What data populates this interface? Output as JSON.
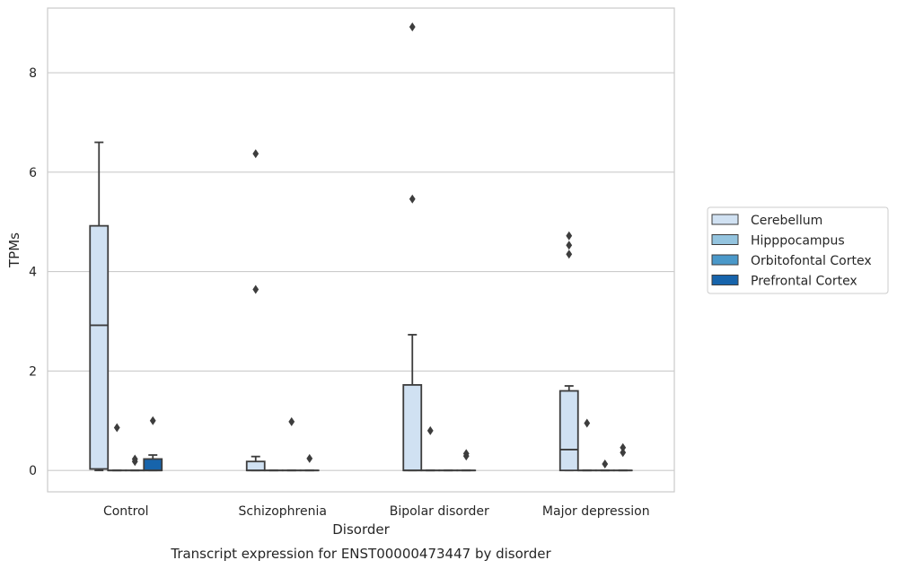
{
  "chart_data": {
    "type": "box",
    "title": "",
    "caption": "Transcript expression for ENST00000473447 by disorder",
    "xlabel": "Disorder",
    "ylabel": "TPMs",
    "ylim": [
      -0.43,
      9.3
    ],
    "yticks": [
      0,
      2,
      4,
      6,
      8
    ],
    "grid": true,
    "categories": [
      "Control",
      "Schizophrenia",
      "Bipolar disorder",
      "Major depression"
    ],
    "legend": {
      "placement": "right",
      "entries": [
        {
          "name": "Cerebellum",
          "color": "#d0e1f2"
        },
        {
          "name": "Hipppocampus",
          "color": "#94c4df"
        },
        {
          "name": "Orbitofontal Cortex",
          "color": "#4a98c9"
        },
        {
          "name": "Prefrontal Cortex",
          "color": "#1764ab"
        }
      ]
    },
    "series": [
      {
        "name": "Cerebellum",
        "boxes": [
          {
            "q1": 0.03,
            "median": 2.92,
            "q3": 4.92,
            "whisker_low": 0.0,
            "whisker_high": 6.6,
            "outliers": []
          },
          {
            "q1": 0.0,
            "median": 0.0,
            "q3": 0.18,
            "whisker_low": 0.0,
            "whisker_high": 0.28,
            "outliers": [
              3.64,
              6.37
            ]
          },
          {
            "q1": 0.0,
            "median": 0.0,
            "q3": 1.72,
            "whisker_low": 0.0,
            "whisker_high": 2.73,
            "outliers": [
              5.46,
              8.92
            ]
          },
          {
            "q1": 0.0,
            "median": 0.42,
            "q3": 1.6,
            "whisker_low": 0.0,
            "whisker_high": 1.7,
            "outliers": [
              4.35,
              4.53,
              4.72
            ]
          }
        ]
      },
      {
        "name": "Hipppocampus",
        "boxes": [
          {
            "q1": 0.0,
            "median": 0.0,
            "q3": 0.0,
            "whisker_low": 0.0,
            "whisker_high": 0.0,
            "outliers": [
              0.86
            ]
          },
          {
            "q1": 0.0,
            "median": 0.0,
            "q3": 0.0,
            "whisker_low": 0.0,
            "whisker_high": 0.0,
            "outliers": []
          },
          {
            "q1": 0.0,
            "median": 0.0,
            "q3": 0.0,
            "whisker_low": 0.0,
            "whisker_high": 0.0,
            "outliers": [
              0.8
            ]
          },
          {
            "q1": 0.0,
            "median": 0.0,
            "q3": 0.0,
            "whisker_low": 0.0,
            "whisker_high": 0.0,
            "outliers": [
              0.95
            ]
          }
        ]
      },
      {
        "name": "Orbitofontal Cortex",
        "boxes": [
          {
            "q1": 0.0,
            "median": 0.0,
            "q3": 0.0,
            "whisker_low": 0.0,
            "whisker_high": 0.0,
            "outliers": [
              0.18,
              0.23
            ]
          },
          {
            "q1": 0.0,
            "median": 0.0,
            "q3": 0.0,
            "whisker_low": 0.0,
            "whisker_high": 0.0,
            "outliers": [
              0.98
            ]
          },
          {
            "q1": 0.0,
            "median": 0.0,
            "q3": 0.0,
            "whisker_low": 0.0,
            "whisker_high": 0.0,
            "outliers": []
          },
          {
            "q1": 0.0,
            "median": 0.0,
            "q3": 0.0,
            "whisker_low": 0.0,
            "whisker_high": 0.0,
            "outliers": [
              0.13
            ]
          }
        ]
      },
      {
        "name": "Prefrontal Cortex",
        "boxes": [
          {
            "q1": 0.0,
            "median": 0.0,
            "q3": 0.23,
            "whisker_low": 0.0,
            "whisker_high": 0.31,
            "outliers": [
              1.0
            ]
          },
          {
            "q1": 0.0,
            "median": 0.0,
            "q3": 0.0,
            "whisker_low": 0.0,
            "whisker_high": 0.0,
            "outliers": [
              0.24
            ]
          },
          {
            "q1": 0.0,
            "median": 0.0,
            "q3": 0.0,
            "whisker_low": 0.0,
            "whisker_high": 0.0,
            "outliers": [
              0.29,
              0.34
            ]
          },
          {
            "q1": 0.0,
            "median": 0.0,
            "q3": 0.0,
            "whisker_low": 0.0,
            "whisker_high": 0.0,
            "outliers": [
              0.36,
              0.46
            ]
          }
        ]
      }
    ]
  }
}
